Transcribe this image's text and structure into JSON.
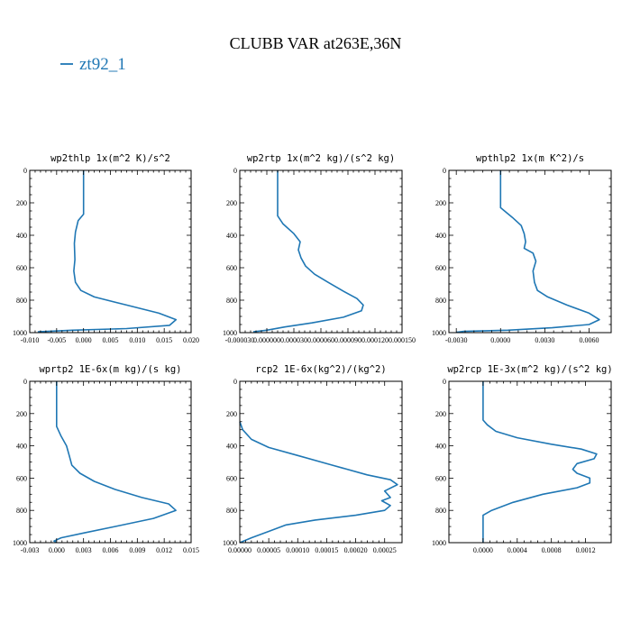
{
  "title": "CLUBB VAR at263E,36N",
  "legend": {
    "label": "zt92_1",
    "color": "#1f77b4"
  },
  "chart_data": [
    {
      "type": "line",
      "title": "wp2thlp   1x(m^2 K)/s^2",
      "xlim": [
        -0.01,
        0.02
      ],
      "ylim": [
        1000,
        0
      ],
      "xticks": [
        -0.01,
        -0.005,
        0.0,
        0.005,
        0.01,
        0.015,
        0.02
      ],
      "xtick_labels": [
        "-0.010",
        "-0.005",
        "0.000",
        "0.005",
        "0.010",
        "0.015",
        "0.020"
      ],
      "yticks": [
        0,
        200,
        400,
        600,
        800,
        1000
      ],
      "ytick_labels": [
        "0",
        "200",
        "400",
        "600",
        "800",
        "1000"
      ],
      "series": [
        {
          "color": "#1f77b4",
          "points": [
            [
              0.0,
              0
            ],
            [
              0.0,
              200
            ],
            [
              0.0,
              270
            ],
            [
              -0.001,
              310
            ],
            [
              -0.0015,
              380
            ],
            [
              -0.0017,
              450
            ],
            [
              -0.0016,
              550
            ],
            [
              -0.0018,
              620
            ],
            [
              -0.0015,
              690
            ],
            [
              -0.0005,
              740
            ],
            [
              0.002,
              780
            ],
            [
              0.008,
              830
            ],
            [
              0.014,
              880
            ],
            [
              0.0172,
              920
            ],
            [
              0.016,
              955
            ],
            [
              0.008,
              975
            ],
            [
              -0.002,
              985
            ],
            [
              -0.0085,
              995
            ]
          ]
        }
      ]
    },
    {
      "type": "line",
      "title": "wp2rtp   1x(m^2 kg)/(s^2 kg)",
      "xlim": [
        -3e-05,
        0.00015
      ],
      "ylim": [
        1000,
        0
      ],
      "xticks": [
        -3e-05,
        0.0,
        3e-05,
        6e-05,
        9e-05,
        0.00012,
        0.00015
      ],
      "xtick_labels": [
        "-0.000030",
        "0.000000",
        "0.000030",
        "0.000060",
        "0.000090",
        "0.000120",
        "0.000150"
      ],
      "yticks": [
        0,
        200,
        400,
        600,
        800,
        1000
      ],
      "ytick_labels": [
        "0",
        "200",
        "400",
        "600",
        "800",
        "1000"
      ],
      "series": [
        {
          "color": "#1f77b4",
          "points": [
            [
              1.2e-05,
              0
            ],
            [
              1.2e-05,
              200
            ],
            [
              1.2e-05,
              280
            ],
            [
              1.8e-05,
              330
            ],
            [
              3e-05,
              390
            ],
            [
              3.7e-05,
              440
            ],
            [
              3.5e-05,
              490
            ],
            [
              3.8e-05,
              540
            ],
            [
              4.3e-05,
              590
            ],
            [
              5.3e-05,
              640
            ],
            [
              6.8e-05,
              690
            ],
            [
              8.5e-05,
              745
            ],
            [
              0.0001,
              790
            ],
            [
              0.000107,
              830
            ],
            [
              0.000105,
              865
            ],
            [
              8.5e-05,
              905
            ],
            [
              5e-05,
              940
            ],
            [
              2e-05,
              965
            ],
            [
              0.0,
              985
            ],
            [
              -1.5e-05,
              995
            ]
          ]
        }
      ]
    },
    {
      "type": "line",
      "title": "wpthlp2   1x(m K^2)/s",
      "xlim": [
        -0.0035,
        0.0075
      ],
      "ylim": [
        1000,
        0
      ],
      "xticks": [
        -0.003,
        0.0,
        0.003,
        0.006
      ],
      "xtick_labels": [
        "-0.0030",
        "0.0000",
        "0.0030",
        "0.0060"
      ],
      "yticks": [
        0,
        200,
        400,
        600,
        800,
        1000
      ],
      "ytick_labels": [
        "0",
        "200",
        "400",
        "600",
        "800",
        "1000"
      ],
      "series": [
        {
          "color": "#1f77b4",
          "points": [
            [
              0.0,
              0
            ],
            [
              0.0,
              200
            ],
            [
              0.0,
              230
            ],
            [
              0.0008,
              290
            ],
            [
              0.0014,
              340
            ],
            [
              0.0016,
              390
            ],
            [
              0.0017,
              440
            ],
            [
              0.0016,
              480
            ],
            [
              0.0022,
              510
            ],
            [
              0.0024,
              560
            ],
            [
              0.0022,
              620
            ],
            [
              0.0023,
              690
            ],
            [
              0.0025,
              740
            ],
            [
              0.0032,
              780
            ],
            [
              0.0045,
              830
            ],
            [
              0.006,
              880
            ],
            [
              0.0067,
              920
            ],
            [
              0.006,
              950
            ],
            [
              0.0035,
              970
            ],
            [
              0.0005,
              985
            ],
            [
              -0.0025,
              992
            ],
            [
              -0.003,
              998
            ]
          ]
        }
      ]
    },
    {
      "type": "line",
      "title": "wprtp2   1E-6x(m kg)/(s kg)",
      "xlim": [
        -0.003,
        0.015
      ],
      "ylim": [
        1000,
        0
      ],
      "xticks": [
        -0.003,
        0.0,
        0.003,
        0.006,
        0.009,
        0.012,
        0.015
      ],
      "xtick_labels": [
        "-0.003",
        "0.000",
        "0.003",
        "0.006",
        "0.009",
        "0.012",
        "0.015"
      ],
      "yticks": [
        0,
        200,
        400,
        600,
        800,
        1000
      ],
      "ytick_labels": [
        "0",
        "200",
        "400",
        "600",
        "800",
        "1000"
      ],
      "series": [
        {
          "color": "#1f77b4",
          "points": [
            [
              0.0,
              0
            ],
            [
              0.0,
              200
            ],
            [
              0.0,
              280
            ],
            [
              0.0005,
              340
            ],
            [
              0.0011,
              400
            ],
            [
              0.0014,
              460
            ],
            [
              0.0017,
              520
            ],
            [
              0.0026,
              570
            ],
            [
              0.0042,
              620
            ],
            [
              0.0065,
              670
            ],
            [
              0.0095,
              720
            ],
            [
              0.0125,
              760
            ],
            [
              0.0133,
              800
            ],
            [
              0.0108,
              850
            ],
            [
              0.0065,
              900
            ],
            [
              0.003,
              940
            ],
            [
              0.0005,
              970
            ],
            [
              -0.0003,
              990
            ],
            [
              0.0,
              998
            ]
          ]
        }
      ]
    },
    {
      "type": "line",
      "title": "rcp2   1E-6x(kg^2)/(kg^2)",
      "xlim": [
        0.0,
        0.00028
      ],
      "ylim": [
        1000,
        0
      ],
      "xticks": [
        0.0,
        5e-05,
        0.0001,
        0.00015,
        0.0002,
        0.00025
      ],
      "xtick_labels": [
        "0.00000",
        "0.00005",
        "0.00010",
        "0.00015",
        "0.00020",
        "0.00025"
      ],
      "yticks": [
        0,
        200,
        400,
        600,
        800,
        1000
      ],
      "ytick_labels": [
        "0",
        "200",
        "400",
        "600",
        "800",
        "1000"
      ],
      "series": [
        {
          "color": "#1f77b4",
          "points": [
            [
              0.0,
              250
            ],
            [
              5e-06,
              300
            ],
            [
              2e-05,
              360
            ],
            [
              5e-05,
              410
            ],
            [
              0.0001,
              460
            ],
            [
              0.00016,
              520
            ],
            [
              0.00022,
              580
            ],
            [
              0.00026,
              610
            ],
            [
              0.000272,
              640
            ],
            [
              0.00025,
              680
            ],
            [
              0.00026,
              720
            ],
            [
              0.000245,
              740
            ],
            [
              0.00026,
              770
            ],
            [
              0.00025,
              800
            ],
            [
              0.0002,
              830
            ],
            [
              0.00013,
              860
            ],
            [
              8e-05,
              890
            ],
            [
              5e-05,
              930
            ],
            [
              2e-05,
              970
            ],
            [
              0.0,
              1000
            ]
          ]
        }
      ]
    },
    {
      "type": "line",
      "title": "wp2rcp   1E-3x(m^2 kg)/(s^2 kg)",
      "xlim": [
        -0.0004,
        0.0015
      ],
      "ylim": [
        1000,
        0
      ],
      "xticks": [
        0.0,
        0.0004,
        0.0008,
        0.0012
      ],
      "xtick_labels": [
        "0.0000",
        "0.0004",
        "0.0008",
        "0.0012"
      ],
      "yticks": [
        0,
        200,
        400,
        600,
        800,
        1000
      ],
      "ytick_labels": [
        "0",
        "200",
        "400",
        "600",
        "800",
        "1000"
      ],
      "series": [
        {
          "color": "#1f77b4",
          "points": [
            [
              0.0,
              0
            ],
            [
              0.0,
              200
            ],
            [
              0.0,
              240
            ],
            [
              5e-05,
              270
            ],
            [
              0.00015,
              310
            ],
            [
              0.0004,
              350
            ],
            [
              0.0008,
              390
            ],
            [
              0.00115,
              420
            ],
            [
              0.00133,
              450
            ],
            [
              0.0013,
              480
            ],
            [
              0.0011,
              510
            ],
            [
              0.00105,
              545
            ],
            [
              0.0011,
              570
            ],
            [
              0.00125,
              600
            ],
            [
              0.00125,
              630
            ],
            [
              0.0011,
              660
            ],
            [
              0.0007,
              700
            ],
            [
              0.00035,
              750
            ],
            [
              0.0001,
              800
            ],
            [
              0.0,
              830
            ],
            [
              0.0,
              900
            ],
            [
              0.0,
              1000
            ]
          ]
        }
      ]
    }
  ]
}
